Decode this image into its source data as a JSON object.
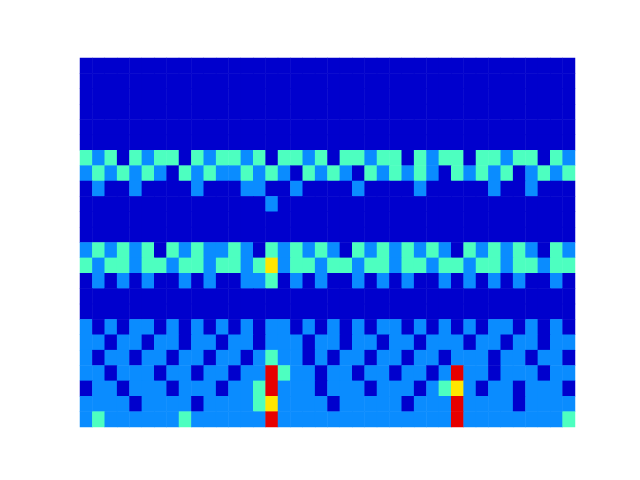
{
  "chart_data": {
    "type": "contourf",
    "tick_labels": false,
    "levels": [
      0,
      1,
      2,
      3,
      4
    ],
    "colors": [
      "#0000cd",
      "#0a8cff",
      "#4dffc0",
      "#ffe600",
      "#e60000"
    ],
    "z": [
      [
        0,
        0,
        0,
        0,
        0,
        0,
        0,
        0,
        0,
        0,
        0,
        0,
        0,
        0,
        0,
        0,
        0,
        0,
        0,
        0,
        0,
        0,
        0,
        0,
        0,
        0,
        0,
        0,
        0,
        0,
        0,
        0,
        0,
        0,
        0,
        0,
        0,
        0,
        0,
        0
      ],
      [
        0,
        0,
        0,
        0,
        0,
        0,
        0,
        0,
        0,
        0,
        0,
        0,
        0,
        0,
        0,
        0,
        0,
        0,
        0,
        0,
        0,
        0,
        0,
        0,
        0,
        0,
        0,
        0,
        0,
        0,
        0,
        0,
        0,
        0,
        0,
        0,
        0,
        0,
        0,
        0
      ],
      [
        0,
        0,
        0,
        0,
        0,
        0,
        0,
        0,
        0,
        0,
        0,
        0,
        0,
        0,
        0,
        0,
        0,
        0,
        0,
        0,
        0,
        0,
        0,
        0,
        0,
        0,
        0,
        0,
        0,
        0,
        0,
        0,
        0,
        0,
        0,
        0,
        0,
        0,
        0,
        0
      ],
      [
        0,
        0,
        0,
        0,
        0,
        0,
        0,
        0,
        0,
        0,
        0,
        0,
        0,
        0,
        0,
        0,
        0,
        0,
        0,
        0,
        0,
        0,
        0,
        0,
        0,
        0,
        0,
        0,
        0,
        0,
        0,
        0,
        0,
        0,
        0,
        0,
        0,
        0,
        0,
        0
      ],
      [
        0,
        0,
        0,
        0,
        0,
        0,
        0,
        0,
        0,
        0,
        0,
        0,
        0,
        0,
        0,
        0,
        0,
        0,
        0,
        0,
        0,
        0,
        0,
        0,
        0,
        0,
        0,
        0,
        0,
        0,
        0,
        0,
        0,
        0,
        0,
        0,
        0,
        0,
        0,
        0
      ],
      [
        0,
        0,
        0,
        0,
        0,
        0,
        0,
        0,
        0,
        0,
        0,
        0,
        0,
        0,
        0,
        0,
        0,
        0,
        0,
        0,
        0,
        0,
        0,
        0,
        0,
        0,
        0,
        0,
        0,
        0,
        0,
        0,
        0,
        0,
        0,
        0,
        0,
        0,
        0,
        0
      ],
      [
        2,
        1,
        2,
        0,
        2,
        1,
        2,
        2,
        0,
        2,
        1,
        2,
        2,
        1,
        2,
        0,
        2,
        2,
        1,
        2,
        0,
        2,
        2,
        1,
        2,
        2,
        0,
        2,
        1,
        2,
        2,
        0,
        2,
        2,
        1,
        2,
        2,
        0,
        2,
        1
      ],
      [
        1,
        2,
        1,
        2,
        1,
        2,
        1,
        0,
        2,
        1,
        2,
        1,
        1,
        2,
        1,
        2,
        1,
        0,
        2,
        1,
        2,
        1,
        0,
        2,
        1,
        2,
        1,
        2,
        1,
        0,
        2,
        1,
        2,
        1,
        2,
        0,
        1,
        2,
        1,
        2
      ],
      [
        0,
        1,
        0,
        0,
        1,
        0,
        0,
        0,
        0,
        1,
        0,
        0,
        0,
        1,
        1,
        0,
        0,
        1,
        0,
        0,
        0,
        0,
        1,
        0,
        0,
        0,
        0,
        1,
        0,
        0,
        0,
        0,
        0,
        1,
        0,
        0,
        1,
        0,
        0,
        0
      ],
      [
        0,
        0,
        0,
        0,
        0,
        0,
        0,
        0,
        0,
        0,
        0,
        0,
        0,
        0,
        0,
        1,
        0,
        0,
        0,
        0,
        0,
        0,
        0,
        0,
        0,
        0,
        0,
        0,
        0,
        0,
        0,
        0,
        0,
        0,
        0,
        0,
        0,
        0,
        0,
        0
      ],
      [
        0,
        0,
        0,
        0,
        0,
        0,
        0,
        0,
        0,
        0,
        0,
        0,
        0,
        0,
        0,
        0,
        0,
        0,
        0,
        0,
        0,
        0,
        0,
        0,
        0,
        0,
        0,
        0,
        0,
        0,
        0,
        0,
        0,
        0,
        0,
        0,
        0,
        0,
        0,
        0
      ],
      [
        0,
        0,
        0,
        0,
        0,
        0,
        0,
        0,
        0,
        0,
        0,
        0,
        0,
        0,
        0,
        0,
        0,
        0,
        0,
        0,
        0,
        0,
        0,
        0,
        0,
        0,
        0,
        0,
        0,
        0,
        0,
        0,
        0,
        0,
        0,
        0,
        0,
        0,
        0,
        0
      ],
      [
        1,
        2,
        1,
        2,
        1,
        2,
        0,
        2,
        1,
        2,
        1,
        1,
        2,
        1,
        0,
        2,
        1,
        2,
        1,
        2,
        1,
        0,
        2,
        1,
        2,
        1,
        2,
        1,
        2,
        1,
        0,
        2,
        1,
        2,
        1,
        2,
        1,
        0,
        2,
        1
      ],
      [
        2,
        1,
        2,
        2,
        1,
        2,
        2,
        1,
        2,
        2,
        1,
        2,
        2,
        1,
        2,
        3,
        1,
        2,
        2,
        1,
        2,
        2,
        1,
        2,
        2,
        1,
        2,
        2,
        1,
        2,
        2,
        1,
        2,
        2,
        1,
        2,
        2,
        1,
        2,
        2
      ],
      [
        0,
        1,
        0,
        1,
        0,
        1,
        0,
        0,
        1,
        0,
        1,
        0,
        0,
        1,
        1,
        2,
        0,
        1,
        0,
        1,
        0,
        0,
        1,
        0,
        1,
        0,
        1,
        0,
        0,
        1,
        0,
        1,
        0,
        1,
        0,
        1,
        0,
        0,
        1,
        0
      ],
      [
        0,
        0,
        0,
        0,
        0,
        0,
        0,
        0,
        0,
        0,
        0,
        0,
        0,
        0,
        0,
        0,
        0,
        0,
        0,
        0,
        0,
        0,
        0,
        0,
        0,
        0,
        0,
        0,
        0,
        0,
        0,
        0,
        0,
        0,
        0,
        0,
        0,
        0,
        0,
        0
      ],
      [
        0,
        0,
        0,
        0,
        0,
        0,
        0,
        0,
        0,
        0,
        0,
        0,
        0,
        0,
        0,
        0,
        0,
        0,
        0,
        0,
        0,
        0,
        0,
        0,
        0,
        0,
        0,
        0,
        0,
        0,
        0,
        0,
        0,
        0,
        0,
        0,
        0,
        0,
        0,
        0
      ],
      [
        1,
        0,
        1,
        0,
        1,
        1,
        0,
        1,
        0,
        1,
        0,
        1,
        0,
        1,
        0,
        1,
        1,
        0,
        1,
        0,
        1,
        0,
        1,
        0,
        1,
        1,
        0,
        1,
        0,
        1,
        0,
        1,
        0,
        1,
        1,
        0,
        1,
        0,
        1,
        0
      ],
      [
        1,
        1,
        0,
        1,
        1,
        0,
        1,
        1,
        0,
        1,
        1,
        0,
        1,
        1,
        0,
        1,
        1,
        1,
        0,
        1,
        1,
        0,
        1,
        1,
        0,
        1,
        1,
        0,
        1,
        1,
        1,
        0,
        1,
        1,
        0,
        1,
        1,
        0,
        1,
        1
      ],
      [
        1,
        0,
        1,
        1,
        0,
        1,
        1,
        0,
        1,
        1,
        0,
        1,
        1,
        0,
        1,
        2,
        1,
        1,
        0,
        1,
        0,
        1,
        1,
        0,
        1,
        1,
        0,
        1,
        1,
        0,
        1,
        1,
        1,
        0,
        1,
        1,
        0,
        1,
        1,
        0
      ],
      [
        1,
        1,
        0,
        1,
        1,
        1,
        0,
        1,
        1,
        0,
        1,
        1,
        0,
        1,
        1,
        4,
        2,
        1,
        1,
        0,
        1,
        1,
        0,
        1,
        1,
        0,
        1,
        1,
        0,
        1,
        4,
        1,
        1,
        0,
        1,
        1,
        1,
        0,
        1,
        1
      ],
      [
        0,
        1,
        1,
        0,
        1,
        1,
        1,
        0,
        1,
        1,
        1,
        0,
        1,
        1,
        2,
        4,
        1,
        1,
        1,
        0,
        1,
        1,
        1,
        0,
        1,
        1,
        1,
        0,
        1,
        2,
        3,
        1,
        0,
        1,
        1,
        0,
        1,
        1,
        1,
        0
      ],
      [
        1,
        1,
        1,
        1,
        0,
        1,
        1,
        1,
        1,
        0,
        1,
        1,
        1,
        1,
        2,
        3,
        1,
        1,
        1,
        1,
        0,
        1,
        1,
        1,
        1,
        1,
        0,
        1,
        1,
        1,
        4,
        1,
        1,
        1,
        1,
        0,
        1,
        1,
        1,
        1
      ],
      [
        1,
        2,
        1,
        1,
        1,
        1,
        1,
        1,
        2,
        1,
        1,
        1,
        1,
        1,
        1,
        4,
        1,
        1,
        1,
        1,
        1,
        1,
        1,
        1,
        1,
        1,
        1,
        1,
        1,
        1,
        4,
        1,
        1,
        1,
        1,
        1,
        1,
        1,
        1,
        2
      ]
    ]
  }
}
